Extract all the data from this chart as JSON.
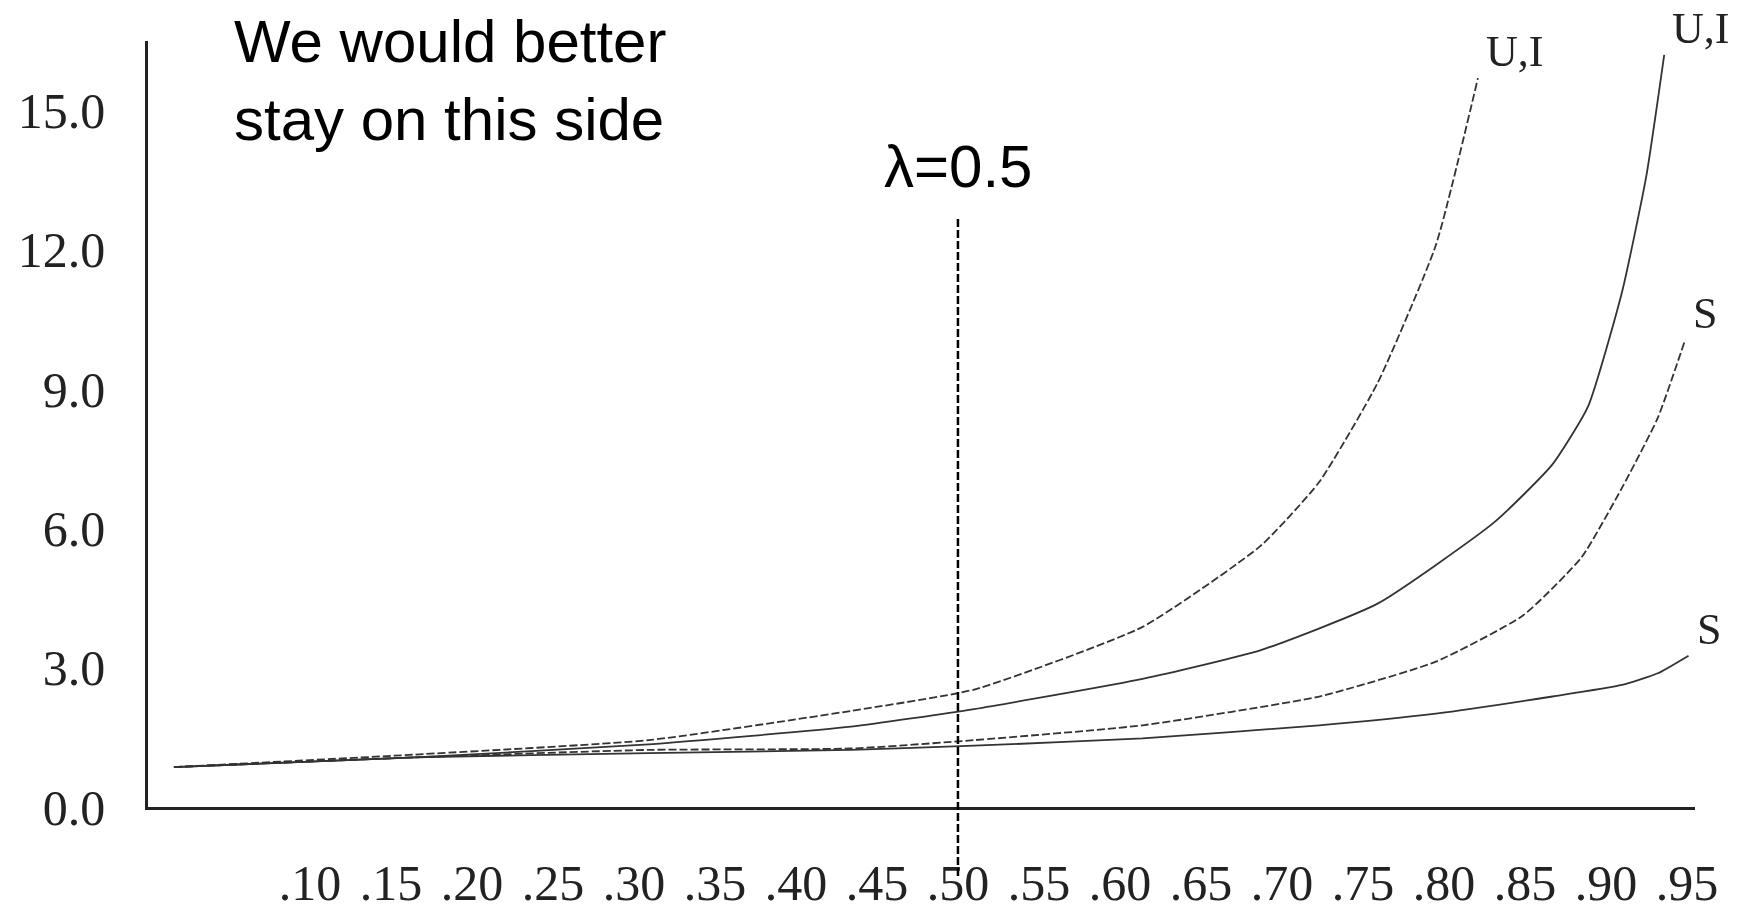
{
  "chart_data": {
    "type": "line",
    "annotations": [
      "We would better\nstay on this side"
    ],
    "series": [
      {
        "name": "U,I",
        "color": "#333333",
        "line_style": "dashed",
        "x": [
          0.016,
          0.165,
          0.309,
          0.434,
          0.51,
          0.614,
          0.687,
          0.723,
          0.759,
          0.795,
          0.821
        ],
        "values": [
          0.86,
          1.13,
          1.44,
          2.07,
          2.53,
          3.88,
          5.63,
          7.0,
          9.13,
          12.1,
          15.7
        ]
      },
      {
        "name": "U,I",
        "color": "#333333",
        "line_style": "solid",
        "x": [
          0.016,
          0.165,
          0.309,
          0.434,
          0.51,
          0.614,
          0.687,
          0.759,
          0.831,
          0.867,
          0.889,
          0.91,
          0.925,
          0.936
        ],
        "values": [
          0.86,
          1.07,
          1.35,
          1.73,
          2.11,
          2.76,
          3.38,
          4.38,
          6.13,
          7.38,
          8.63,
          11.1,
          13.6,
          16.2
        ]
      },
      {
        "name": "S",
        "color": "#333333",
        "line_style": "dashed",
        "x": [
          0.016,
          0.165,
          0.309,
          0.434,
          0.51,
          0.614,
          0.723,
          0.795,
          0.849,
          0.885,
          0.91,
          0.932,
          0.949
        ],
        "values": [
          0.86,
          1.07,
          1.23,
          1.26,
          1.44,
          1.76,
          2.38,
          3.13,
          4.13,
          5.38,
          6.88,
          8.38,
          10.07
        ]
      },
      {
        "name": "S",
        "color": "#333333",
        "line_style": "solid",
        "x": [
          0.016,
          0.165,
          0.309,
          0.434,
          0.51,
          0.614,
          0.723,
          0.795,
          0.867,
          0.91,
          0.932,
          0.951
        ],
        "values": [
          0.86,
          1.07,
          1.16,
          1.23,
          1.32,
          1.48,
          1.76,
          2.01,
          2.38,
          2.63,
          2.88,
          3.26
        ]
      }
    ],
    "ref_lines": [
      {
        "axis": "x",
        "value": 0.5,
        "label": "λ=0.5",
        "color": "#000000",
        "line_style": "dashed"
      }
    ],
    "xlim": [
      0.0,
      0.955
    ],
    "xticks": [
      {
        "value": 0.1,
        "label": ".10"
      },
      {
        "value": 0.15,
        "label": ".15"
      },
      {
        "value": 0.2,
        "label": ".20"
      },
      {
        "value": 0.25,
        "label": ".25"
      },
      {
        "value": 0.3,
        "label": ".30"
      },
      {
        "value": 0.35,
        "label": ".35"
      },
      {
        "value": 0.4,
        "label": ".40"
      },
      {
        "value": 0.45,
        "label": ".45"
      },
      {
        "value": 0.5,
        "label": ".50"
      },
      {
        "value": 0.55,
        "label": ".55"
      },
      {
        "value": 0.6,
        "label": ".60"
      },
      {
        "value": 0.65,
        "label": ".65"
      },
      {
        "value": 0.7,
        "label": ".70"
      },
      {
        "value": 0.75,
        "label": ".75"
      },
      {
        "value": 0.8,
        "label": ".80"
      },
      {
        "value": 0.85,
        "label": ".85"
      },
      {
        "value": 0.9,
        "label": ".90"
      },
      {
        "value": 0.95,
        "label": ".95"
      }
    ],
    "ylim": [
      0,
      16.5
    ],
    "yticks": [
      {
        "value": 0,
        "label": "0.0"
      },
      {
        "value": 3,
        "label": "3.0"
      },
      {
        "value": 6,
        "label": "6.0"
      },
      {
        "value": 9,
        "label": "9.0"
      },
      {
        "value": 12,
        "label": "12.0"
      },
      {
        "value": 15,
        "label": "15.0"
      }
    ],
    "legend": false,
    "marker": "none"
  }
}
